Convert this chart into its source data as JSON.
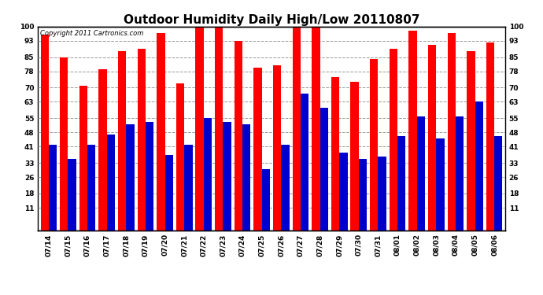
{
  "title": "Outdoor Humidity Daily High/Low 20110807",
  "copyright": "Copyright 2011 Cartronics.com",
  "dates": [
    "07/14",
    "07/15",
    "07/16",
    "07/17",
    "07/18",
    "07/19",
    "07/20",
    "07/21",
    "07/22",
    "07/23",
    "07/24",
    "07/25",
    "07/26",
    "07/27",
    "07/28",
    "07/29",
    "07/30",
    "07/31",
    "08/01",
    "08/02",
    "08/03",
    "08/04",
    "08/05",
    "08/06"
  ],
  "highs": [
    96,
    85,
    71,
    79,
    88,
    89,
    97,
    72,
    100,
    100,
    93,
    80,
    81,
    100,
    100,
    75,
    73,
    84,
    89,
    98,
    91,
    97,
    88,
    92
  ],
  "lows": [
    42,
    35,
    42,
    47,
    52,
    53,
    37,
    42,
    55,
    53,
    52,
    30,
    42,
    67,
    60,
    38,
    35,
    36,
    46,
    56,
    45,
    56,
    63,
    46
  ],
  "high_color": "#ff0000",
  "low_color": "#0000cc",
  "bg_color": "#ffffff",
  "grid_color": "#999999",
  "yticks": [
    11,
    18,
    26,
    33,
    41,
    48,
    55,
    63,
    70,
    78,
    85,
    93,
    100
  ],
  "ymin": 0,
  "ymax": 100,
  "bar_width": 0.42,
  "title_fontsize": 11,
  "tick_fontsize": 6.5,
  "copyright_fontsize": 6
}
